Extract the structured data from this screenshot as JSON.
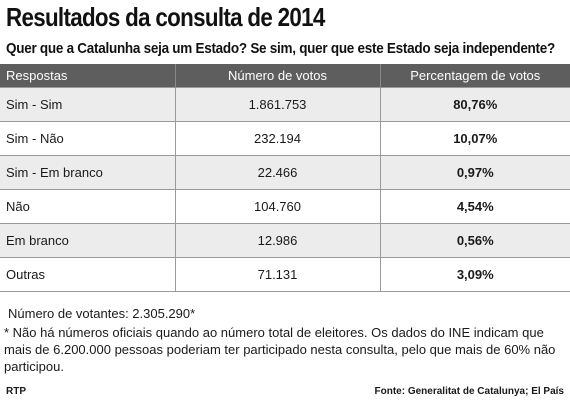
{
  "title": "Resultados da consulta de 2014",
  "subtitle": "Quer que a Catalunha seja um Estado? Se sim, quer que este Estado seja independente?",
  "table": {
    "headers": [
      "Respostas",
      "Número de votos",
      "Percentagem de votos"
    ],
    "rows": [
      {
        "answer": "Sim - Sim",
        "votes": "1.861.753",
        "percent": "80,76%"
      },
      {
        "answer": "Sim - Não",
        "votes": "232.194",
        "percent": "10,07%"
      },
      {
        "answer": "Sim - Em branco",
        "votes": "22.466",
        "percent": "0,97%"
      },
      {
        "answer": "Não",
        "votes": "104.760",
        "percent": "4,54%"
      },
      {
        "answer": "Em branco",
        "votes": "12.986",
        "percent": "0,56%"
      },
      {
        "answer": "Outras",
        "votes": "71.131",
        "percent": "3,09%"
      }
    ]
  },
  "voters_text": "Número de votantes: 2.305.290*",
  "note_text": "* Não há números oficiais quando ao número total de eleitores. Os dados do INE indicam que mais de 6.200.000 pessoas poderiam ter participado nesta consulta, pelo que mais de 60% não participou.",
  "credit_left": "RTP",
  "credit_right": "Fonte: Generalitat de Catalunya; El País",
  "colors": {
    "header_bg": "#5e5e5e",
    "row_alt_bg": "#ececec"
  }
}
